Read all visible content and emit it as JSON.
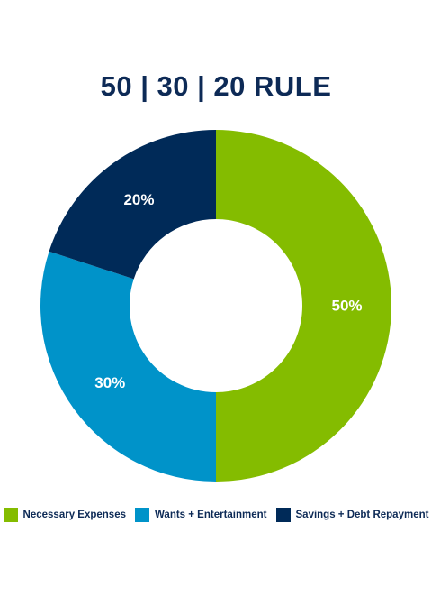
{
  "colors": {
    "title": "#0d2a56",
    "background": "#ffffff"
  },
  "chart_data": {
    "type": "pie",
    "variant": "donut",
    "title": "50 | 30 | 20 RULE",
    "categories": [
      "Necessary Expenses",
      "Wants + Entertainment",
      "Savings + Debt Repayment"
    ],
    "values": [
      50,
      30,
      20
    ],
    "labels": [
      "50%",
      "30%",
      "20%"
    ],
    "colors": [
      "#84bc00",
      "#0093c9",
      "#002a58"
    ],
    "legend_position": "bottom"
  }
}
